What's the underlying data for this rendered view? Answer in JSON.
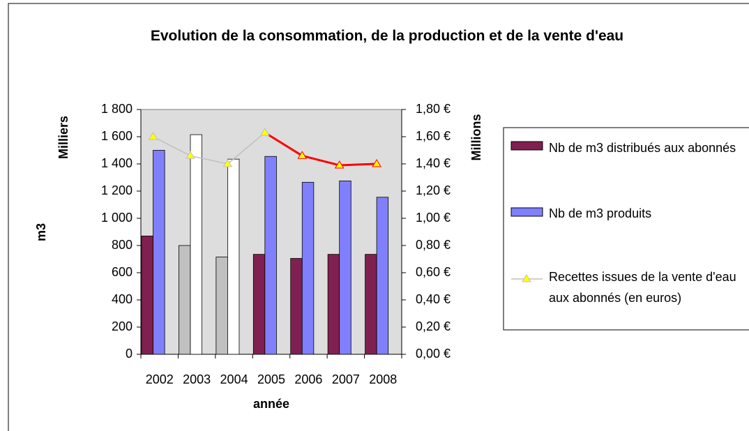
{
  "chart_data": {
    "type": "bar",
    "title": "Evolution de la consommation, de la production et de la vente d'eau",
    "ylabel": "m3",
    "ylabel_unit": "Milliers",
    "y2label_unit": "Millions",
    "xlabel": "année",
    "categories": [
      "2002",
      "2003",
      "2004",
      "2005",
      "2006",
      "2007",
      "2008"
    ],
    "series": [
      {
        "name": "Nb de m3 distribués aux abonnés",
        "type": "bar",
        "color": "#802050",
        "colors": [
          "#802050",
          "#c0c0c0",
          "#c0c0c0",
          "#802050",
          "#802050",
          "#802050",
          "#802050"
        ],
        "values": [
          870,
          800,
          715,
          735,
          705,
          735,
          735
        ]
      },
      {
        "name": "Nb de m3 produits",
        "type": "bar",
        "color": "#8080ff",
        "colors": [
          "#8080ff",
          "#ffffff",
          "#ffffff",
          "#8080ff",
          "#8080ff",
          "#8080ff",
          "#8080ff"
        ],
        "values": [
          1500,
          1615,
          1435,
          1455,
          1265,
          1275,
          1155
        ]
      },
      {
        "name": "Recettes issues de la vente d'eau aux abonnés (en euros)",
        "type": "line",
        "axis": "y2",
        "color": "#c0c0c0",
        "colors": [
          "#c0c0c0",
          "#c0c0c0",
          "#c0c0c0",
          "#c0c0c0",
          "#ff0000",
          "#ff0000",
          "#ff0000"
        ],
        "values": [
          1.6,
          1.46,
          1.4,
          1.63,
          1.46,
          1.39,
          1.4
        ]
      }
    ],
    "ylim": [
      0,
      1800
    ],
    "yticks": [
      0,
      200,
      400,
      600,
      800,
      {
        "value": 1000,
        "label": "1 000"
      },
      {
        "value": 1200,
        "label": "1 200"
      },
      {
        "value": 1400,
        "label": "1 400"
      },
      {
        "value": 1600,
        "label": "1 600"
      },
      {
        "value": 1800,
        "label": "1 800"
      }
    ],
    "y2lim": [
      0,
      1.8
    ],
    "y2ticks": [
      {
        "value": 0,
        "label": "0,00 €"
      },
      {
        "value": 0.2,
        "label": "0,20 €"
      },
      {
        "value": 0.4,
        "label": "0,40 €"
      },
      {
        "value": 0.6,
        "label": "0,60 €"
      },
      {
        "value": 0.8,
        "label": "0,80 €"
      },
      {
        "value": 1.0,
        "label": "1,00 €"
      },
      {
        "value": 1.2,
        "label": "1,20 €"
      },
      {
        "value": 1.4,
        "label": "1,40 €"
      },
      {
        "value": 1.6,
        "label": "1,60 €"
      },
      {
        "value": 1.8,
        "label": "1,80 €"
      }
    ],
    "grid": false,
    "legend": "right",
    "plot_background": "#dddddd"
  }
}
